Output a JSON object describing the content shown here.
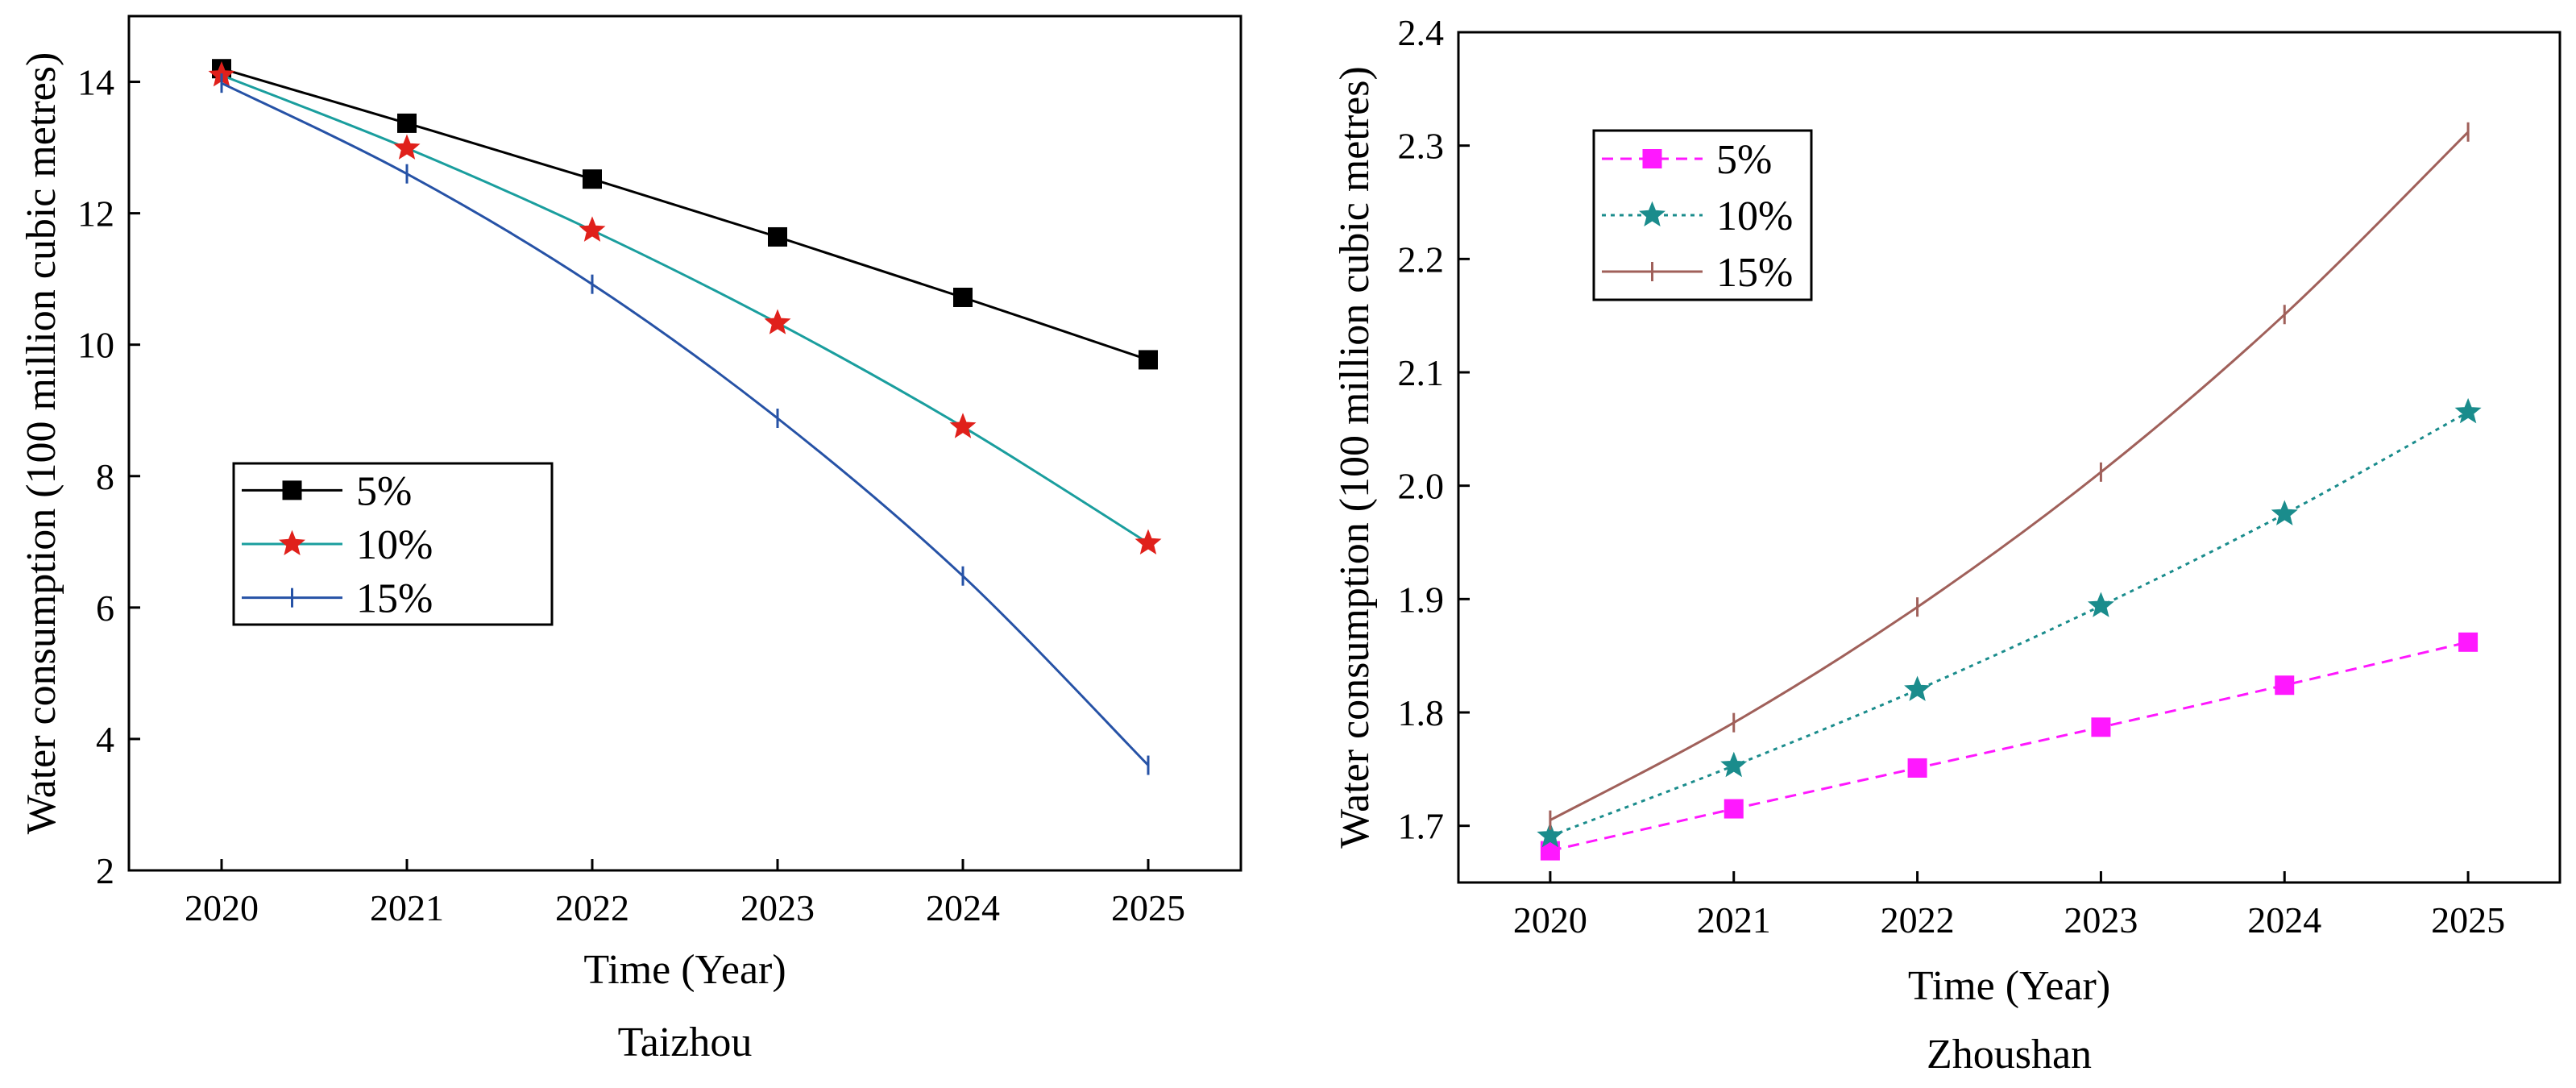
{
  "chart_data": [
    {
      "type": "line",
      "caption": "Taizhou",
      "xlabel": "Time (Year)",
      "ylabel": "Water consumption (100 million cubic metres)",
      "x": [
        2020,
        2021,
        2022,
        2023,
        2024,
        2025
      ],
      "x_tick_labels": [
        "2020",
        "2021",
        "2022",
        "2023",
        "2024",
        "2025"
      ],
      "xlim": [
        2019.5,
        2025.5
      ],
      "ylim": [
        2,
        15
      ],
      "y_ticks": [
        2,
        4,
        6,
        8,
        10,
        12,
        14
      ],
      "y_tick_labels": [
        "2",
        "4",
        "6",
        "8",
        "10",
        "12",
        "14"
      ],
      "grid": false,
      "legend_position": "middle-left",
      "series": [
        {
          "name": "5%",
          "values": [
            14.2,
            13.37,
            12.52,
            11.64,
            10.72,
            9.77
          ],
          "color": "#000000",
          "marker": "square",
          "line_style": "solid"
        },
        {
          "name": "10%",
          "values": [
            14.1,
            12.99,
            11.74,
            10.33,
            8.75,
            6.98
          ],
          "color": "#1a9e9e",
          "marker": "star",
          "marker_color": "#e0201b",
          "line_style": "solid"
        },
        {
          "name": "15%",
          "values": [
            13.98,
            12.6,
            10.92,
            8.88,
            6.48,
            3.6
          ],
          "color": "#2652a6",
          "marker": "vbar",
          "line_style": "solid"
        }
      ]
    },
    {
      "type": "line",
      "caption": "Zhoushan",
      "xlabel": "Time (Year)",
      "ylabel": "Water consumption (100 million cubic metres)",
      "x": [
        2020,
        2021,
        2022,
        2023,
        2024,
        2025
      ],
      "x_tick_labels": [
        "2020",
        "2021",
        "2022",
        "2023",
        "2024",
        "2025"
      ],
      "xlim": [
        2019.5,
        2025.5
      ],
      "ylim": [
        1.65,
        2.4
      ],
      "y_ticks": [
        1.7,
        1.8,
        1.9,
        2.0,
        2.1,
        2.2,
        2.3,
        2.4
      ],
      "y_tick_labels": [
        "1.7",
        "1.8",
        "1.9",
        "2.0",
        "2.1",
        "2.2",
        "2.3",
        "2.4"
      ],
      "grid": false,
      "legend_position": "top-left",
      "series": [
        {
          "name": "5%",
          "values": [
            1.678,
            1.715,
            1.751,
            1.787,
            1.824,
            1.862
          ],
          "color": "#ff18ff",
          "marker": "square",
          "line_style": "dashed"
        },
        {
          "name": "10%",
          "values": [
            1.691,
            1.753,
            1.82,
            1.894,
            1.975,
            2.065
          ],
          "color": "#1a8c8c",
          "marker": "star",
          "line_style": "dotted"
        },
        {
          "name": "15%",
          "values": [
            1.705,
            1.791,
            1.893,
            2.012,
            2.151,
            2.312
          ],
          "color": "#a0605a",
          "marker": "vbar",
          "line_style": "solid"
        }
      ]
    }
  ]
}
